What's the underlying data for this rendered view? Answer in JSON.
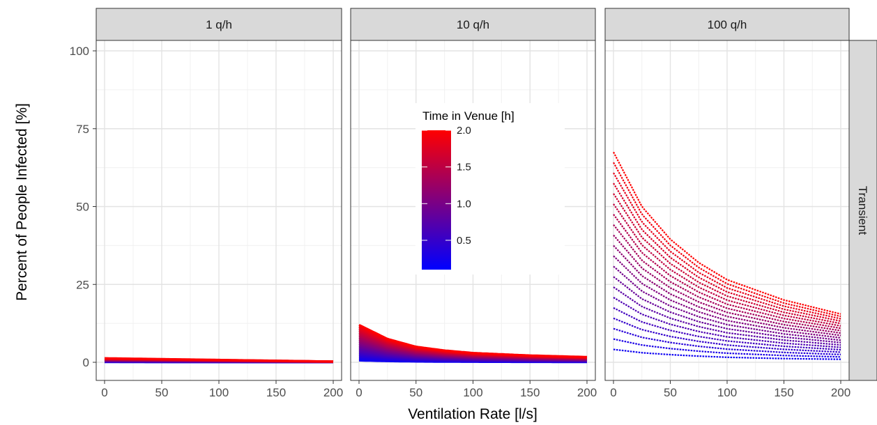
{
  "chart_data": {
    "type": "line",
    "xlabel": "Ventilation Rate [l/s]",
    "ylabel": "Percent of People Infected [%]",
    "xlim": [
      0,
      200
    ],
    "ylim": [
      0,
      100
    ],
    "x_ticks": [
      0,
      50,
      100,
      150,
      200
    ],
    "y_ticks": [
      0,
      25,
      50,
      75,
      100
    ],
    "grid": true,
    "row_strip": "Transient",
    "color_scale": {
      "title": "Time in Venue [h]",
      "min": 0.1,
      "max": 2.0,
      "ticks": [
        "0.5",
        "1.0",
        "1.5",
        "2.0"
      ],
      "low_color": "#0000ff",
      "high_color": "#ff0000"
    },
    "panels": [
      {
        "label": "1 q/h",
        "series_summary": "curves for time in venue 0.1 to 2.0 h",
        "x": [
          0,
          200
        ],
        "max_curve_y": [
          1.3,
          0.25
        ],
        "min_curve_y": [
          0.0,
          0.0
        ]
      },
      {
        "label": "10 q/h",
        "x": [
          0,
          25,
          50,
          75,
          100,
          150,
          200
        ],
        "max_curve_y": [
          12.0,
          7.5,
          5.0,
          3.8,
          3.0,
          2.2,
          1.7
        ],
        "min_curve_y": [
          0.0,
          0.0,
          0.0,
          0.0,
          0.0,
          0.0,
          0.0
        ]
      },
      {
        "label": "100 q/h",
        "x": [
          0,
          25,
          50,
          75,
          100,
          150,
          200
        ],
        "max_curve_y": [
          67.5,
          50.0,
          39.5,
          32.0,
          26.5,
          20.0,
          15.5
        ],
        "min_curve_y": [
          0.8,
          0.6,
          0.5,
          0.4,
          0.3,
          0.2,
          0.2
        ]
      }
    ]
  }
}
